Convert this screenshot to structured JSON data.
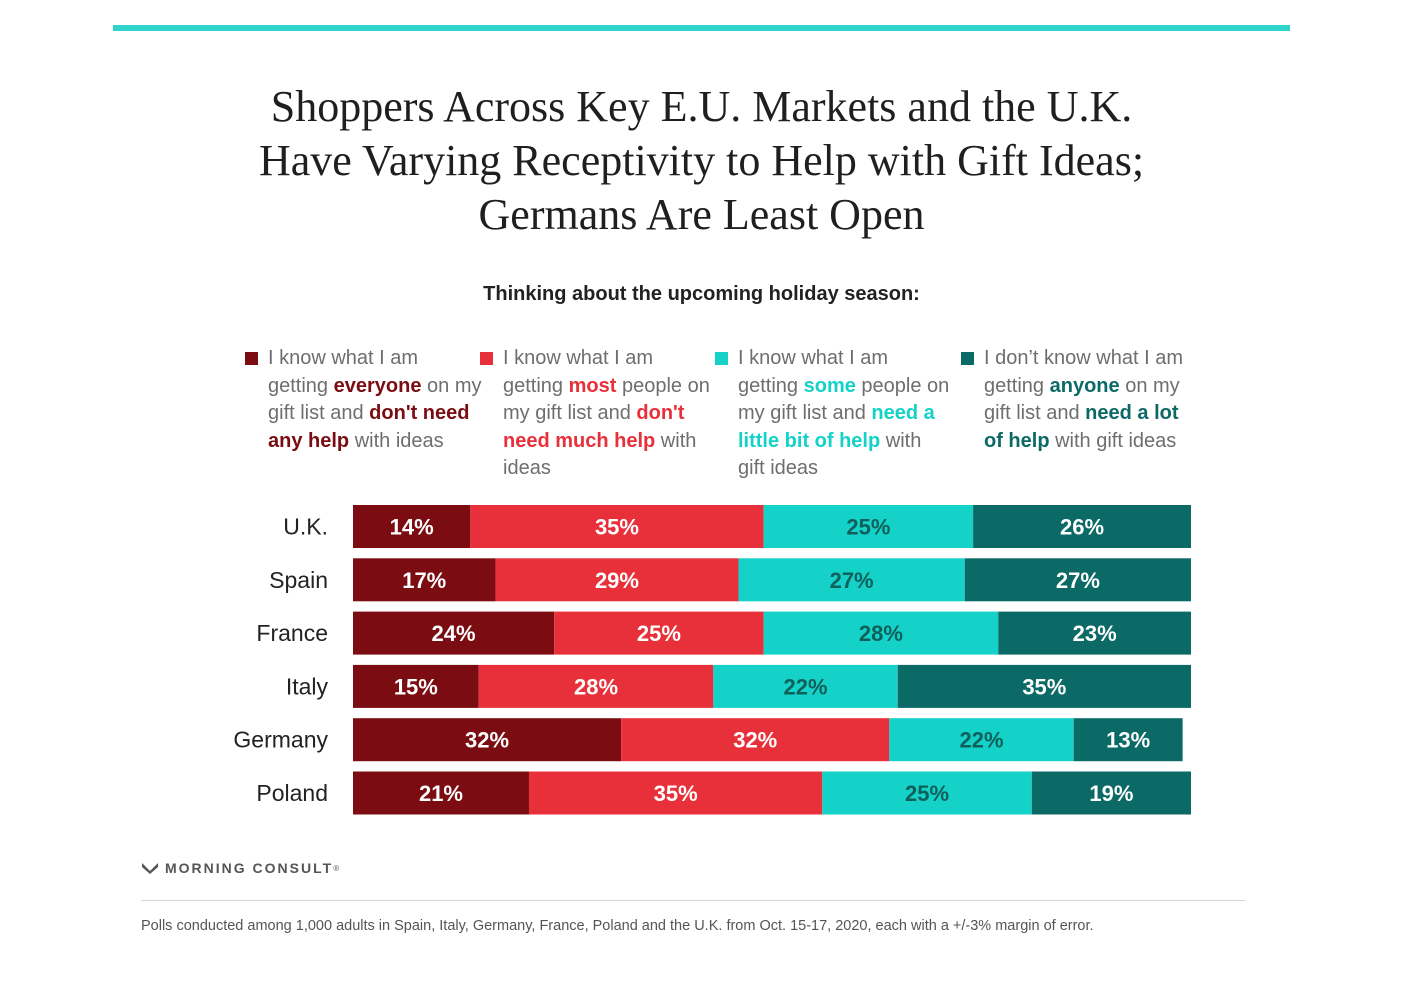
{
  "title_lines": [
    "Shoppers Across Key E.U. Markets and the U.K.",
    "Have Varying Receptivity to Help with Gift Ideas;",
    "Germans Are Least Open"
  ],
  "subtitle": "Thinking about the upcoming holiday season:",
  "colors": {
    "everyone": "#7b0d12",
    "most": "#e8303a",
    "some": "#14d2c8",
    "anyone": "#0c6a66",
    "legend_text": "#6e6e6e",
    "accent_rule": "#2ed3c9"
  },
  "legend": [
    {
      "segments": [
        {
          "text": "I know what I am getting ",
          "bold": false
        },
        {
          "text": "everyone",
          "bold": true
        },
        {
          "text": " on my gift list and ",
          "bold": false
        },
        {
          "text": "don't need any help",
          "bold": true
        },
        {
          "text": " with ideas",
          "bold": false
        }
      ]
    },
    {
      "segments": [
        {
          "text": "I know what I am getting ",
          "bold": false
        },
        {
          "text": "most",
          "bold": true
        },
        {
          "text": " people on my gift list and ",
          "bold": false
        },
        {
          "text": "don't need much help",
          "bold": true
        },
        {
          "text": " with ideas",
          "bold": false
        }
      ]
    },
    {
      "segments": [
        {
          "text": "I know what I am getting ",
          "bold": false
        },
        {
          "text": "some",
          "bold": true
        },
        {
          "text": " people on my gift list and ",
          "bold": false
        },
        {
          "text": "need a little bit of help",
          "bold": true
        },
        {
          "text": " with gift ideas",
          "bold": false
        }
      ]
    },
    {
      "segments": [
        {
          "text": "I don’t know what I am getting ",
          "bold": false
        },
        {
          "text": "anyone",
          "bold": true
        },
        {
          "text": " on my gift list and ",
          "bold": false
        },
        {
          "text": "need a lot of help",
          "bold": true
        },
        {
          "text": " with gift ideas",
          "bold": false
        }
      ]
    }
  ],
  "chart_data": {
    "type": "bar",
    "orientation": "horizontal",
    "stacked": true,
    "categories": [
      "U.K.",
      "Spain",
      "France",
      "Italy",
      "Germany",
      "Poland"
    ],
    "series": [
      {
        "name": "I know what I am getting everyone on my gift list and don't need any help with ideas",
        "key": "everyone",
        "values": [
          14,
          17,
          24,
          15,
          32,
          21
        ]
      },
      {
        "name": "I know what I am getting most people on my gift list and don't need much help with ideas",
        "key": "most",
        "values": [
          35,
          29,
          25,
          28,
          32,
          35
        ]
      },
      {
        "name": "I know what I am getting some people on my gift list and need a little bit of help with gift ideas",
        "key": "some",
        "values": [
          25,
          27,
          28,
          22,
          22,
          25
        ]
      },
      {
        "name": "I don’t know what I am getting anyone on my gift list and need a lot of help with gift ideas",
        "key": "anyone",
        "values": [
          26,
          27,
          23,
          35,
          13,
          19
        ]
      }
    ],
    "value_suffix": "%",
    "xlim": [
      0,
      100
    ],
    "legend_position": "top"
  },
  "logo_text": "MORNING CONSULT",
  "logo_mark": "®",
  "footnote": "Polls conducted among 1,000 adults in Spain, Italy, Germany, France, Poland and the U.K. from Oct. 15-17, 2020, each with a +/-3% margin of error."
}
